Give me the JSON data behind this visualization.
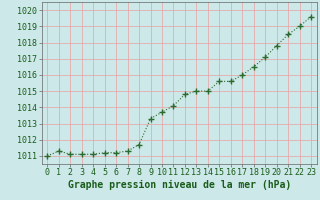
{
  "x": [
    0,
    1,
    2,
    3,
    4,
    5,
    6,
    7,
    8,
    9,
    10,
    11,
    12,
    13,
    14,
    15,
    16,
    17,
    18,
    19,
    20,
    21,
    22,
    23
  ],
  "y": [
    1011.0,
    1011.3,
    1011.1,
    1011.1,
    1011.1,
    1011.2,
    1011.2,
    1011.3,
    1011.7,
    1013.3,
    1013.7,
    1014.1,
    1014.8,
    1015.0,
    1015.0,
    1015.6,
    1015.6,
    1016.0,
    1016.5,
    1017.1,
    1017.8,
    1018.5,
    1019.0,
    1019.6
  ],
  "line_color": "#2d6a2d",
  "marker": "+",
  "marker_color": "#2d6a2d",
  "marker_size": 4,
  "line_width": 0.8,
  "line_style": "dotted",
  "bg_color": "#cce8e8",
  "grid_color": "#e8a0a0",
  "xlabel": "Graphe pression niveau de la mer (hPa)",
  "xlabel_color": "#1a5c1a",
  "xlabel_fontsize": 7,
  "xlabel_weight": "bold",
  "tick_label_color": "#1a5c1a",
  "tick_fontsize": 6,
  "ylim": [
    1010.5,
    1020.5
  ],
  "yticks": [
    1011,
    1012,
    1013,
    1014,
    1015,
    1016,
    1017,
    1018,
    1019,
    1020
  ],
  "xlim": [
    -0.5,
    23.5
  ],
  "xticks": [
    0,
    1,
    2,
    3,
    4,
    5,
    6,
    7,
    8,
    9,
    10,
    11,
    12,
    13,
    14,
    15,
    16,
    17,
    18,
    19,
    20,
    21,
    22,
    23
  ]
}
